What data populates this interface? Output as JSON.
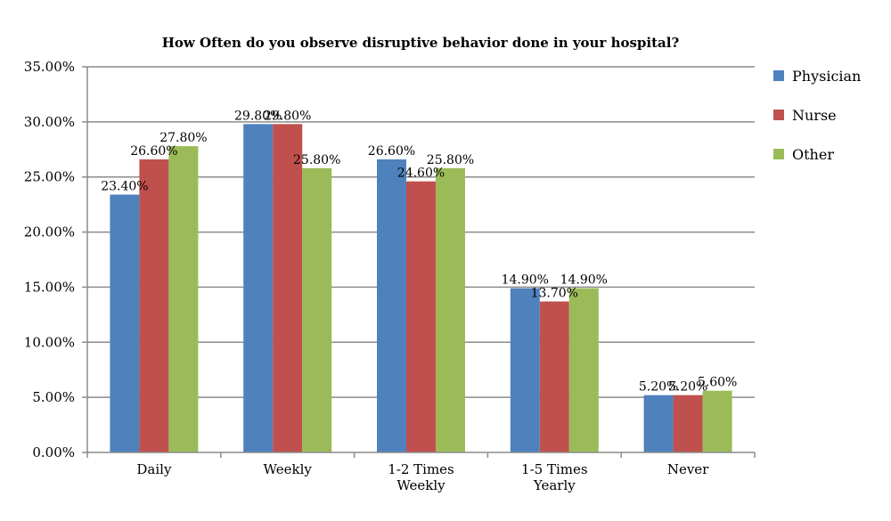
{
  "chart_data": {
    "type": "bar",
    "title": "How Often do you observe disruptive behavior done in your hospital?",
    "xlabel": "",
    "ylabel": "",
    "categories": [
      [
        "Daily"
      ],
      [
        "Weekly"
      ],
      [
        "1-2 Times",
        "Weekly"
      ],
      [
        "1-5 Times",
        "Yearly"
      ],
      [
        "Never"
      ]
    ],
    "series": [
      {
        "name": "Physician",
        "color": "#4f81bd",
        "values": [
          23.4,
          29.8,
          26.6,
          14.9,
          5.2
        ],
        "labels": [
          "23.40%",
          "29.80%",
          "26.60%",
          "14.90%",
          "5.20%"
        ]
      },
      {
        "name": "Nurse",
        "color": "#c0504d",
        "values": [
          26.6,
          29.8,
          24.6,
          13.7,
          5.2
        ],
        "labels": [
          "26.60%",
          "29.80%",
          "24.60%",
          "13.70%",
          "5.20%"
        ]
      },
      {
        "name": "Other",
        "color": "#9bbb59",
        "values": [
          27.8,
          25.8,
          25.8,
          14.9,
          5.6
        ],
        "labels": [
          "27.80%",
          "25.80%",
          "25.80%",
          "14.90%",
          "5.60%"
        ]
      }
    ],
    "ylim": [
      0,
      35
    ],
    "yticks": [
      0,
      5,
      10,
      15,
      20,
      25,
      30,
      35
    ],
    "ytick_labels": [
      "0.00%",
      "5.00%",
      "10.00%",
      "15.00%",
      "20.00%",
      "25.00%",
      "30.00%",
      "35.00%"
    ],
    "grid": true,
    "legend_position": "right"
  }
}
